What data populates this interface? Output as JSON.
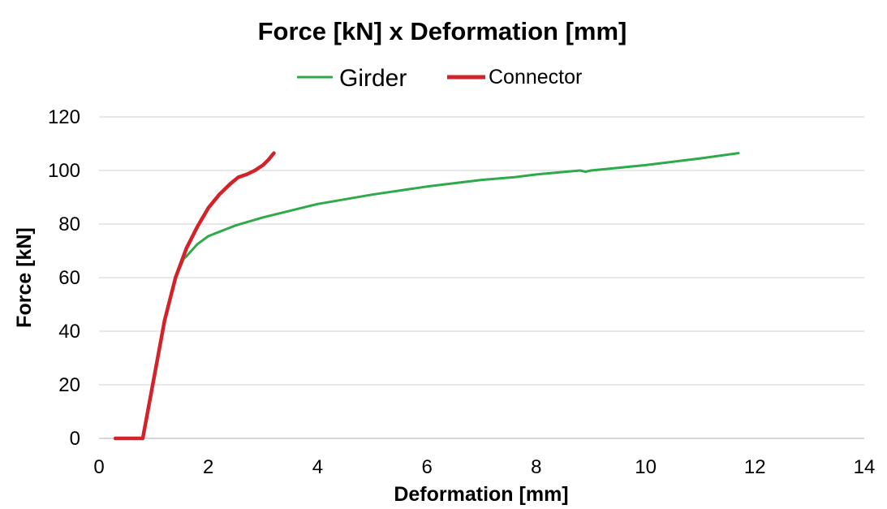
{
  "chart_data": {
    "type": "line",
    "title": "Force [kN] x Deformation [mm]",
    "xlabel": "Deformation [mm]",
    "ylabel": "Force [kN]",
    "xlim": [
      0,
      14
    ],
    "ylim": [
      0,
      120
    ],
    "xticks": [
      0,
      2,
      4,
      6,
      8,
      10,
      12,
      14
    ],
    "yticks": [
      0,
      20,
      40,
      60,
      80,
      100,
      120
    ],
    "grid": "horizontal",
    "legend_position": "top",
    "series": [
      {
        "name": "Girder",
        "color": "#2eaa4a",
        "x": [
          0.3,
          0.8,
          1.0,
          1.2,
          1.4,
          1.55,
          1.6,
          1.8,
          2.0,
          2.5,
          3.0,
          4.0,
          5.0,
          6.0,
          7.0,
          7.6,
          8.0,
          8.8,
          8.9,
          9.0,
          10.0,
          11.0,
          11.7
        ],
        "y": [
          0,
          0,
          22,
          44,
          60,
          67,
          68,
          72.5,
          75.5,
          79.5,
          82.5,
          87.5,
          91,
          94,
          96.5,
          97.5,
          98.5,
          100,
          99.5,
          100,
          102,
          104.5,
          106.5
        ]
      },
      {
        "name": "Connector",
        "color": "#d2232a",
        "x": [
          0.3,
          0.8,
          1.0,
          1.2,
          1.4,
          1.6,
          1.8,
          2.0,
          2.2,
          2.4,
          2.55,
          2.7,
          2.85,
          3.0,
          3.1,
          3.2
        ],
        "y": [
          0,
          0,
          22,
          44,
          60,
          71,
          79,
          86,
          91,
          95,
          97.5,
          98.5,
          100,
          102,
          104,
          106.5
        ]
      }
    ]
  }
}
